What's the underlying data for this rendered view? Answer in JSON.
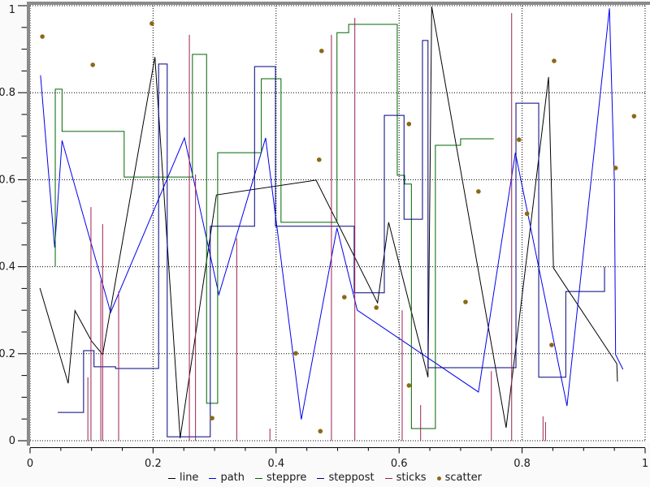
{
  "figure": {
    "background": "#fafafa",
    "plot_background": "#ffffff",
    "frame_color": "#8a8a8a",
    "grid_color": "#000000",
    "axis_color": "#000000",
    "tick_label_color": "#1a1a1a"
  },
  "chart_data": {
    "type": "mixed",
    "title": "",
    "xlabel": "",
    "ylabel": "",
    "xlim": [
      0,
      1
    ],
    "ylim": [
      0,
      1
    ],
    "xticks": {
      "values": [
        0,
        0.2,
        0.4,
        0.6,
        0.8,
        1
      ],
      "labels": [
        "0",
        "0.2",
        "0.4",
        "0.6",
        "0.8",
        "1"
      ]
    },
    "yticks": {
      "values": [
        0,
        0.2,
        0.4,
        0.6,
        0.8,
        1
      ],
      "labels": [
        "0",
        "0.2",
        "0.4",
        "0.6",
        "0.8",
        "1"
      ]
    },
    "minor_tick_step": 0.05,
    "grid": "dotted",
    "legend_position": "bottom-center",
    "series": [
      {
        "name": "line",
        "type": "line",
        "color": "#000000",
        "points": [
          [
            0.016,
            0.351
          ],
          [
            0.062,
            0.132
          ],
          [
            0.073,
            0.299
          ],
          [
            0.1,
            0.229
          ],
          [
            0.118,
            0.198
          ],
          [
            0.203,
            0.882
          ],
          [
            0.244,
            0.006
          ],
          [
            0.303,
            0.565
          ],
          [
            0.465,
            0.599
          ],
          [
            0.565,
            0.317
          ],
          [
            0.583,
            0.502
          ],
          [
            0.647,
            0.146
          ],
          [
            0.653,
            0.998
          ],
          [
            0.774,
            0.03
          ],
          [
            0.843,
            0.836
          ],
          [
            0.851,
            0.397
          ],
          [
            0.954,
            0.177
          ],
          [
            0.955,
            0.136
          ]
        ]
      },
      {
        "name": "path",
        "type": "path",
        "color": "#0000ee",
        "points": [
          [
            0.017,
            0.84
          ],
          [
            0.04,
            0.444
          ],
          [
            0.052,
            0.69
          ],
          [
            0.131,
            0.295
          ],
          [
            0.251,
            0.696
          ],
          [
            0.307,
            0.336
          ],
          [
            0.383,
            0.696
          ],
          [
            0.441,
            0.049
          ],
          [
            0.499,
            0.489
          ],
          [
            0.532,
            0.3
          ],
          [
            0.729,
            0.112
          ],
          [
            0.789,
            0.662
          ],
          [
            0.873,
            0.08
          ],
          [
            0.942,
            0.994
          ],
          [
            0.95,
            0.597
          ],
          [
            0.952,
            0.198
          ],
          [
            0.964,
            0.164
          ]
        ]
      },
      {
        "name": "steppre",
        "type": "steppre",
        "color": "#006400",
        "points": [
          [
            0.041,
            0.401
          ],
          [
            0.052,
            0.808
          ],
          [
            0.153,
            0.711
          ],
          [
            0.264,
            0.606
          ],
          [
            0.287,
            0.888
          ],
          [
            0.305,
            0.086
          ],
          [
            0.376,
            0.662
          ],
          [
            0.408,
            0.832
          ],
          [
            0.499,
            0.502
          ],
          [
            0.518,
            0.938
          ],
          [
            0.597,
            0.957
          ],
          [
            0.609,
            0.61
          ],
          [
            0.62,
            0.59
          ],
          [
            0.659,
            0.028
          ],
          [
            0.7,
            0.679
          ],
          [
            0.754,
            0.694
          ]
        ]
      },
      {
        "name": "steppost",
        "type": "steppost",
        "color": "#000080",
        "points": [
          [
            0.045,
            0.065
          ],
          [
            0.087,
            0.207
          ],
          [
            0.104,
            0.17
          ],
          [
            0.139,
            0.166
          ],
          [
            0.209,
            0.866
          ],
          [
            0.223,
            0.009
          ],
          [
            0.293,
            0.493
          ],
          [
            0.365,
            0.86
          ],
          [
            0.399,
            0.493
          ],
          [
            0.527,
            0.34
          ],
          [
            0.576,
            0.748
          ],
          [
            0.608,
            0.509
          ],
          [
            0.638,
            0.92
          ],
          [
            0.647,
            0.168
          ],
          [
            0.79,
            0.776
          ],
          [
            0.827,
            0.146
          ],
          [
            0.871,
            0.343
          ],
          [
            0.934,
            0.4
          ]
        ]
      },
      {
        "name": "sticks",
        "type": "sticks",
        "color": "#992255",
        "points": [
          [
            0.094,
            0.146
          ],
          [
            0.099,
            0.537
          ],
          [
            0.115,
            0.368
          ],
          [
            0.118,
            0.498
          ],
          [
            0.144,
            0.343
          ],
          [
            0.259,
            0.933
          ],
          [
            0.269,
            0.612
          ],
          [
            0.336,
            0.465
          ],
          [
            0.39,
            0.028
          ],
          [
            0.49,
            0.933
          ],
          [
            0.528,
            0.972
          ],
          [
            0.605,
            0.3
          ],
          [
            0.635,
            0.082
          ],
          [
            0.75,
            0.16
          ],
          [
            0.783,
            0.983
          ],
          [
            0.834,
            0.056
          ],
          [
            0.838,
            0.043
          ]
        ]
      },
      {
        "name": "scatter",
        "type": "scatter",
        "color": "#8b6914",
        "points": [
          [
            0.02,
            0.929
          ],
          [
            0.102,
            0.864
          ],
          [
            0.198,
            0.959
          ],
          [
            0.296,
            0.052
          ],
          [
            0.432,
            0.201
          ],
          [
            0.47,
            0.646
          ],
          [
            0.472,
            0.022
          ],
          [
            0.474,
            0.896
          ],
          [
            0.511,
            0.33
          ],
          [
            0.563,
            0.306
          ],
          [
            0.616,
            0.127
          ],
          [
            0.616,
            0.728
          ],
          [
            0.708,
            0.319
          ],
          [
            0.729,
            0.573
          ],
          [
            0.795,
            0.692
          ],
          [
            0.808,
            0.522
          ],
          [
            0.848,
            0.22
          ],
          [
            0.852,
            0.873
          ],
          [
            0.952,
            0.627
          ],
          [
            0.982,
            0.746
          ]
        ]
      }
    ]
  }
}
